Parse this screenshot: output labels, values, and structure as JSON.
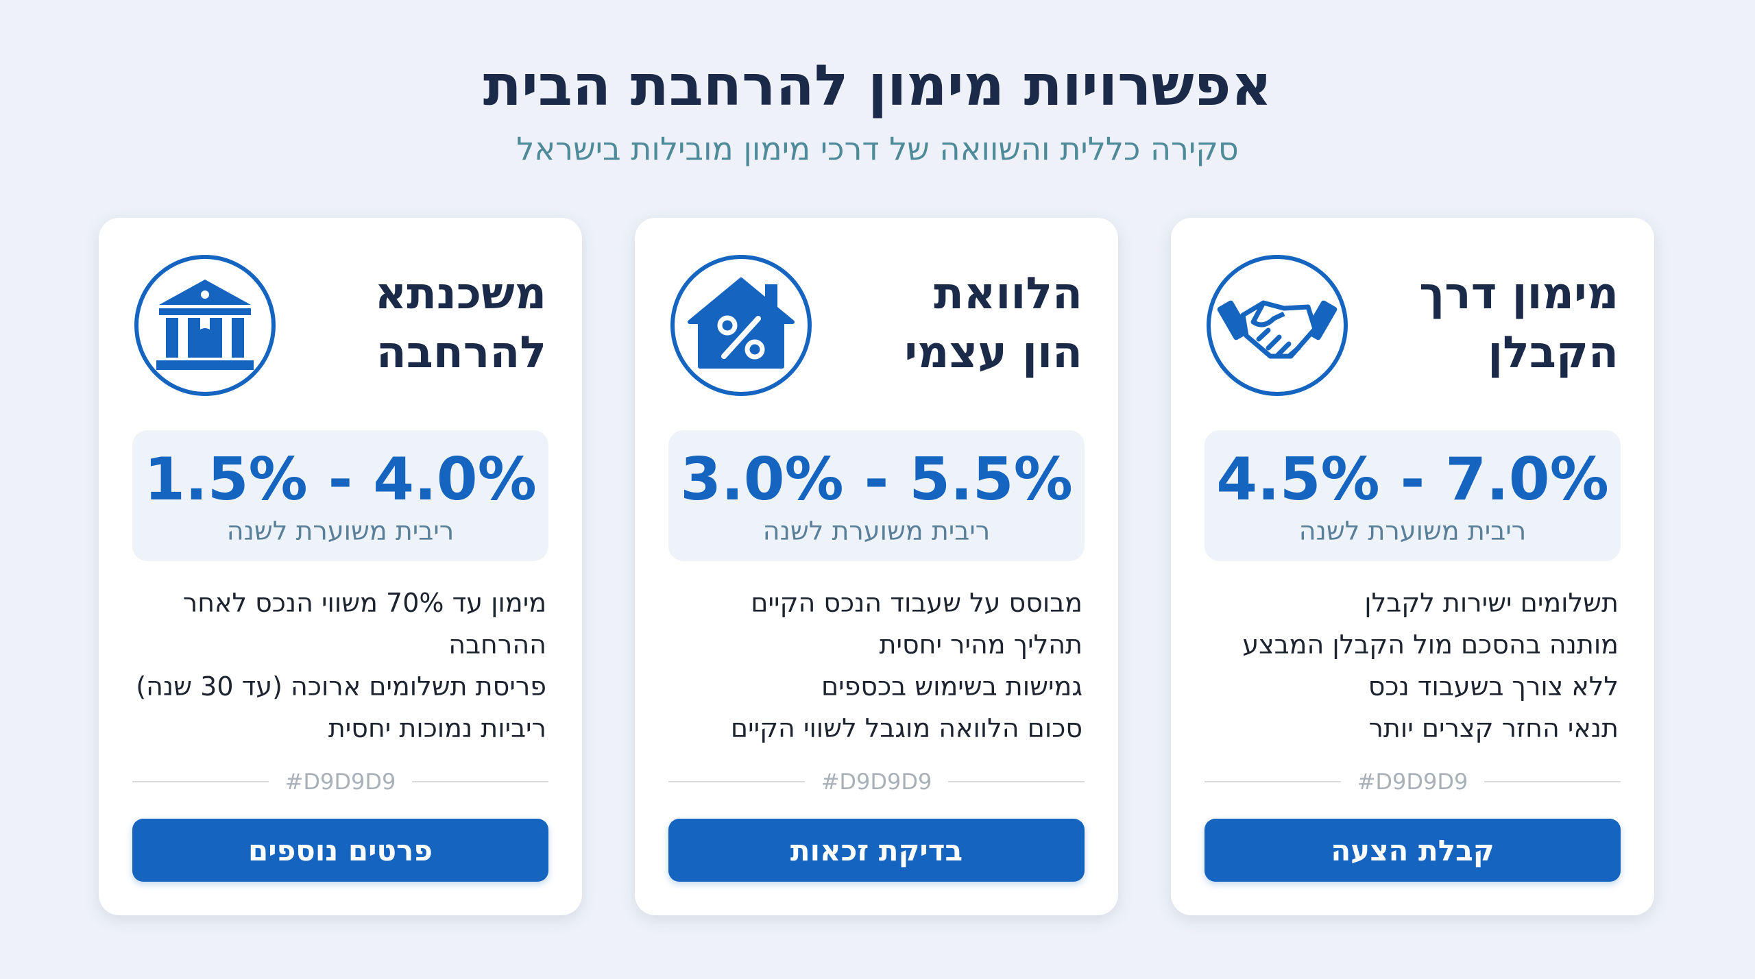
{
  "header": {
    "title": "אפשרויות מימון להרחבת הבית",
    "subtitle": "סקירה כללית והשוואה של דרכי מימון מובילות בישראל"
  },
  "cards": [
    {
      "title_lines": [
        "מימון דרך",
        "הקבלן"
      ],
      "rate": "4.5% - 7.0%",
      "rate_label": "ריבית משוערת לשנה",
      "features": [
        "תשלומים ישירות לקבלן",
        "מותנה בהסכם מול הקבלן המבצע",
        "ללא צורך בשעבוד נכס",
        "תנאי החזר קצרים יותר"
      ],
      "divider_label": "#D9D9D9",
      "button": "קבלת הצעה"
    },
    {
      "title_lines": [
        "הלוואת",
        "הון עצמי"
      ],
      "rate": "3.0% - 5.5%",
      "rate_label": "ריבית משוערת לשנה",
      "features": [
        "מבוסס על שעבוד הנכס הקיים",
        "תהליך מהיר יחסית",
        "גמישות בשימוש בכספים",
        "סכום הלוואה מוגבל לשווי הקיים"
      ],
      "divider_label": "#D9D9D9",
      "button": "בדיקת זכאות"
    },
    {
      "title_lines": [
        "משכנתא",
        "להרחבה"
      ],
      "rate": "1.5% - 4.0%",
      "rate_label": "ריבית משוערת לשנה",
      "features": [
        "מימון עד 70% משווי הנכס לאחר ההרחבה",
        "פריסת תשלומים ארוכה (עד 30 שנה)",
        "ריביות נמוכות יחסית"
      ],
      "divider_label": "#D9D9D9",
      "button": "פרטים נוספים"
    }
  ]
}
